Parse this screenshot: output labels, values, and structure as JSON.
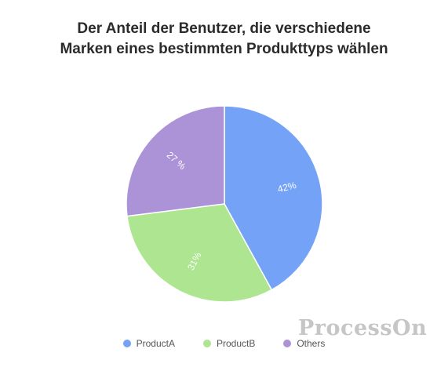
{
  "chart_data": {
    "type": "pie",
    "title": [
      "Der Anteil der Benutzer, die verschiedene",
      "Marken eines bestimmten Produkttyps wählen"
    ],
    "slices": [
      {
        "name": "ProductA",
        "value": 42,
        "label": "42%",
        "color": "#74a2f7"
      },
      {
        "name": "ProductB",
        "value": 31,
        "label": "31%",
        "color": "#ade591"
      },
      {
        "name": "Others",
        "value": 27,
        "label": "27 %",
        "color": "#ac93d8"
      }
    ],
    "legend_position": "bottom"
  },
  "watermark": "ProcessOn"
}
